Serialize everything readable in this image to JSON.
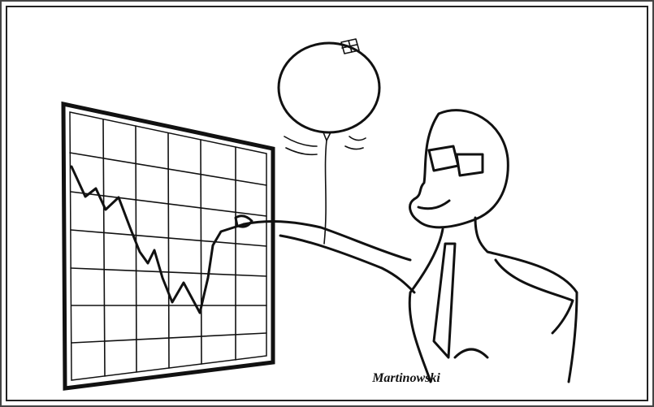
{
  "signature": "Martinowski"
}
